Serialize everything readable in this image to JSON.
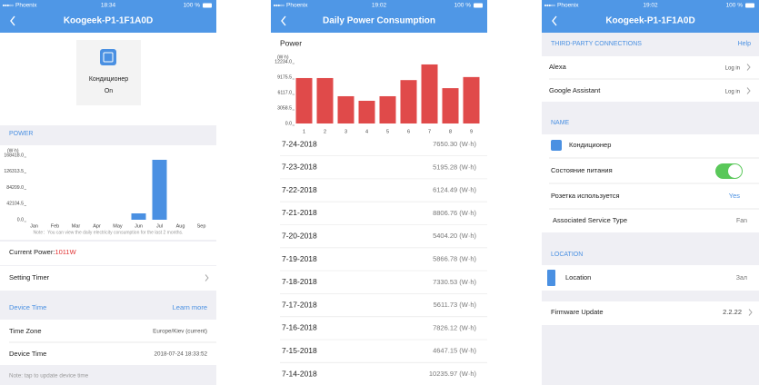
{
  "screens": [
    {
      "status": {
        "carrier": "Phoenix",
        "time": "18:34",
        "battery": "100 %"
      },
      "header": "Koogeek-P1-1F1A0D",
      "device": {
        "name": "Кондиционер",
        "state": "On"
      },
      "power_section": "POWER",
      "chart": {
        "type": "bar",
        "unit": "(W·h)",
        "categories": [
          "Jan",
          "Feb",
          "Mar",
          "Apr",
          "May",
          "Jun",
          "Jul",
          "Aug",
          "Sep"
        ],
        "values": [
          0,
          0,
          0,
          0,
          0,
          16600,
          156600,
          0,
          0
        ],
        "color": "#4a90e2",
        "ylim": [
          0,
          168418
        ],
        "yticks": [
          {
            "value": 0,
            "label": "0.0"
          },
          42104.5,
          {
            "value": 84209,
            "label": "84209.0"
          },
          126313.5,
          {
            "value": 168418,
            "label": "168418.0"
          }
        ],
        "note": "Note：You can view the daily electricity consumption for the last 2 months."
      },
      "current_power": {
        "label": "Current Power:",
        "value": "1011W"
      },
      "setting_timer": "Setting Timer",
      "device_time_section": {
        "title": "Device Time",
        "link": "Learn more"
      },
      "rows": [
        {
          "label": "Time Zone",
          "value": "Europe/Kiev (current)"
        },
        {
          "label": "Device Time",
          "value": "2018-07-24 18:33:52"
        }
      ],
      "footer_note": "Note: tap to update device time"
    },
    {
      "status": {
        "carrier": "Phoenix",
        "time": "19:02",
        "battery": "100 %"
      },
      "header": "Daily Power Consumption",
      "chart": {
        "type": "bar",
        "title": "Power",
        "unit": "(W·h)",
        "categories": [
          "1",
          "2",
          "3",
          "4",
          "5",
          "6",
          "7",
          "8",
          "9"
        ],
        "values": [
          9000,
          9000,
          5400,
          4500,
          5400,
          8600,
          11700,
          7000,
          9200
        ],
        "color": "#e04a4a",
        "ylim": [
          0,
          12234
        ],
        "yticks": [
          {
            "value": 0,
            "label": "0.0"
          },
          3058.5,
          {
            "value": 6117,
            "label": "6117.0"
          },
          9175.5,
          {
            "value": 12234,
            "label": "12234.0"
          }
        ]
      },
      "list": [
        {
          "date": "7-24-2018",
          "value": "7650.30 (W·h)"
        },
        {
          "date": "7-23-2018",
          "value": "5195.28 (W·h)"
        },
        {
          "date": "7-22-2018",
          "value": "6124.49 (W·h)"
        },
        {
          "date": "7-21-2018",
          "value": "8806.76 (W·h)"
        },
        {
          "date": "7-20-2018",
          "value": "5404.20 (W·h)"
        },
        {
          "date": "7-19-2018",
          "value": "5866.78 (W·h)"
        },
        {
          "date": "7-18-2018",
          "value": "7330.53 (W·h)"
        },
        {
          "date": "7-17-2018",
          "value": "5611.73 (W·h)"
        },
        {
          "date": "7-16-2018",
          "value": "7826.12 (W·h)"
        },
        {
          "date": "7-15-2018",
          "value": "4647.15 (W·h)"
        },
        {
          "date": "7-14-2018",
          "value": "10235.97 (W·h)"
        }
      ]
    },
    {
      "status": {
        "carrier": "Phoenix",
        "time": "19:02",
        "battery": "100 %"
      },
      "header": "Koogeek-P1-1F1A0D",
      "third_party": {
        "title": "THIRD-PARTY CONNECTIONS",
        "help": "Help",
        "rows": [
          {
            "label": "Alexa",
            "action": "Log in"
          },
          {
            "label": "Google Assistant",
            "action": "Log in"
          }
        ]
      },
      "name_section": "NAME",
      "device_name": "Кондиционер",
      "rows": [
        {
          "label": "Состояние питания"
        },
        {
          "label": "Розетка используется",
          "value": "Yes"
        },
        {
          "label": "Associated Service Type",
          "value": "Fan"
        }
      ],
      "location_section": "LOCATION",
      "location": {
        "label": "Location",
        "value": "Зал"
      },
      "firmware": {
        "label": "Firmware Update",
        "value": "2.2.22"
      }
    }
  ]
}
